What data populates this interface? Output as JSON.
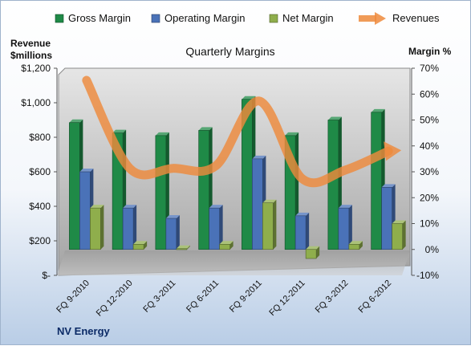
{
  "chart_data": {
    "type": "bar",
    "title": "Quarterly Margins",
    "company": "NV Energy",
    "ylabel_left": [
      "Revenue",
      "$millions"
    ],
    "ylabel_right": "Margin %",
    "categories": [
      "FQ 9-2010",
      "FQ 12-2010",
      "FQ 3-2011",
      "FQ 6-2011",
      "FQ 9-2011",
      "FQ 12-2011",
      "FQ 3-2012",
      "FQ 6-2012"
    ],
    "left_axis": {
      "min": 0,
      "max": 1200,
      "step": 200,
      "tick_labels": [
        "$-",
        "$200",
        "$400",
        "$600",
        "$800",
        "$1,000",
        "$1,200"
      ]
    },
    "right_axis": {
      "min": -10,
      "max": 70,
      "step": 10,
      "tick_labels": [
        "-10%",
        "0%",
        "10%",
        "20%",
        "30%",
        "40%",
        "50%",
        "60%",
        "70%"
      ]
    },
    "series": [
      {
        "name": "Gross Margin",
        "kind": "bar",
        "axis": "right",
        "color": "#1f8a47",
        "values": [
          49,
          45,
          44,
          46,
          58,
          44,
          50,
          53
        ]
      },
      {
        "name": "Operating Margin",
        "kind": "bar",
        "axis": "right",
        "color": "#4a72b8",
        "values": [
          30,
          16,
          12,
          16,
          35,
          13,
          16,
          24
        ]
      },
      {
        "name": "Net Margin",
        "kind": "bar",
        "axis": "right",
        "color": "#8fae4c",
        "values": [
          16,
          2,
          0.3,
          2,
          18,
          -3.5,
          2,
          10
        ]
      },
      {
        "name": "Revenues",
        "kind": "line",
        "axis": "left",
        "color": "#ee8a3c",
        "values": [
          1130,
          620,
          620,
          635,
          1010,
          560,
          610,
          720
        ]
      }
    ],
    "legend_position": "top",
    "grid": false
  }
}
